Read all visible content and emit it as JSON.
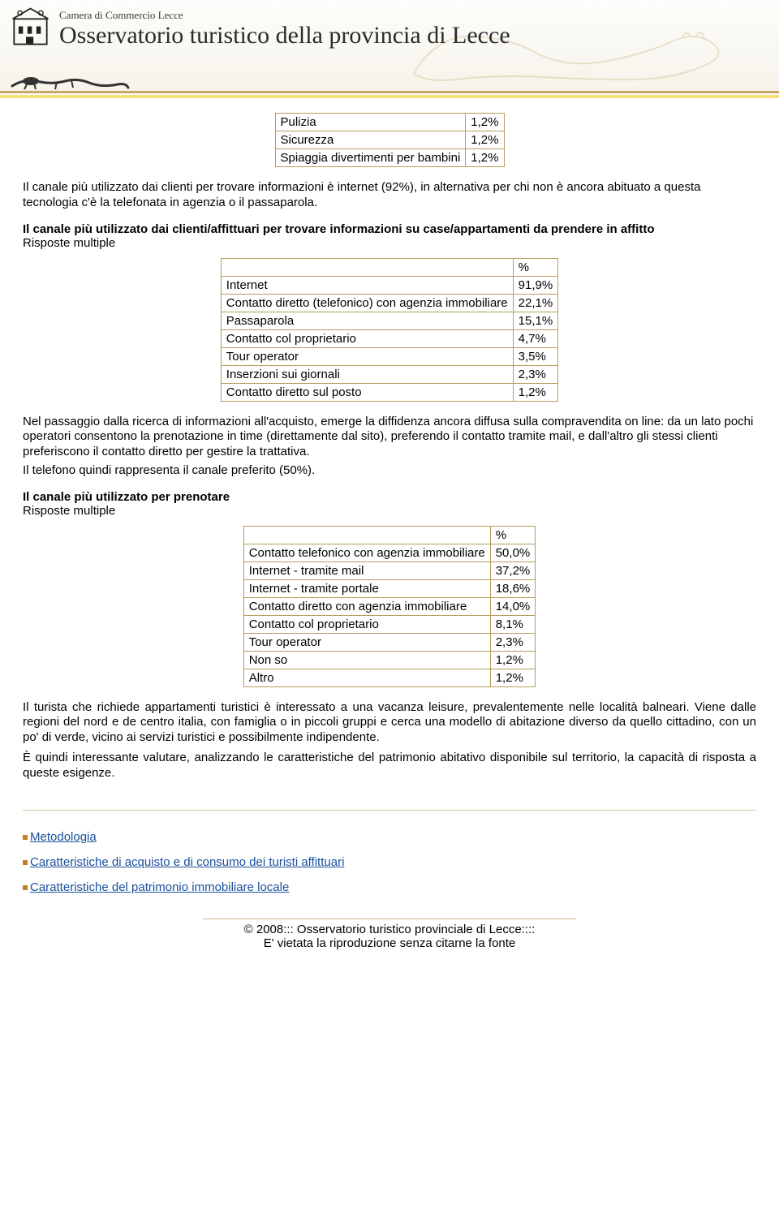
{
  "header": {
    "subtitle": "Camera di Commercio Lecce",
    "title": "Osservatorio turistico della provincia di Lecce"
  },
  "table1": {
    "rows": [
      [
        "Pulizia",
        "1,2%"
      ],
      [
        "Sicurezza",
        "1,2%"
      ],
      [
        "Spiaggia divertimenti per bambini",
        "1,2%"
      ]
    ],
    "border_color": "#b59b5f"
  },
  "para1": "Il canale più utilizzato dai clienti per trovare informazioni è internet (92%), in alternativa per chi non è ancora abituato a questa tecnologia c'è la telefonata in agenzia o il passaparola.",
  "section2": {
    "title": "Il canale più utilizzato dai clienti/affittuari per trovare informazioni su case/appartamenti da prendere in affitto",
    "note": "Risposte multiple"
  },
  "table2": {
    "header": [
      "",
      "%"
    ],
    "rows": [
      [
        "Internet",
        "91,9%"
      ],
      [
        "Contatto diretto (telefonico) con agenzia immobiliare",
        "22,1%"
      ],
      [
        "Passaparola",
        "15,1%"
      ],
      [
        "Contatto col proprietario",
        "4,7%"
      ],
      [
        "Tour operator",
        "3,5%"
      ],
      [
        "Inserzioni sui giornali",
        "2,3%"
      ],
      [
        "Contatto diretto sul posto",
        "1,2%"
      ]
    ],
    "border_color": "#b59b5f"
  },
  "para2": "Nel passaggio dalla ricerca di informazioni all'acquisto, emerge la diffidenza ancora diffusa sulla compravendita on line: da un lato pochi operatori consentono la prenotazione in time (direttamente dal sito), preferendo il contatto tramite mail, e dall'altro gli stessi clienti preferiscono il contatto diretto per gestire la trattativa.",
  "para2b": "Il telefono quindi rappresenta il canale preferito (50%).",
  "section3": {
    "title": "Il canale più utilizzato per prenotare",
    "note": "Risposte multiple"
  },
  "table3": {
    "header": [
      "",
      "%"
    ],
    "rows": [
      [
        "Contatto telefonico con agenzia immobiliare",
        "50,0%"
      ],
      [
        "Internet - tramite mail",
        "37,2%"
      ],
      [
        "Internet - tramite portale",
        "18,6%"
      ],
      [
        "Contatto diretto con agenzia immobiliare",
        "14,0%"
      ],
      [
        "Contatto col proprietario",
        "8,1%"
      ],
      [
        "Tour operator",
        "2,3%"
      ],
      [
        "Non so",
        "1,2%"
      ],
      [
        "Altro",
        "1,2%"
      ]
    ],
    "border_color": "#b59b5f"
  },
  "para3": "Il turista che richiede appartamenti turistici è interessato a una vacanza leisure, prevalentemente nelle località balneari. Viene dalle regioni del nord e de centro italia, con famiglia o in piccoli gruppi e cerca una modello di abitazione diverso da quello cittadino, con un po' di verde, vicino ai servizi turistici e possibilmente indipendente.",
  "para4": "È quindi interessante valutare, analizzando le caratteristiche del patrimonio abitativo disponibile sul territorio, la capacità di risposta a queste esigenze.",
  "links": [
    "Metodologia",
    "Caratteristiche di acquisto e di consumo dei turisti affittuari",
    "Caratteristiche del patrimonio immobiliare locale"
  ],
  "footer": {
    "line1": "© 2008::: Osservatorio turistico provinciale di Lecce::::",
    "line2": "E' vietata la riproduzione senza citarne la fonte"
  }
}
